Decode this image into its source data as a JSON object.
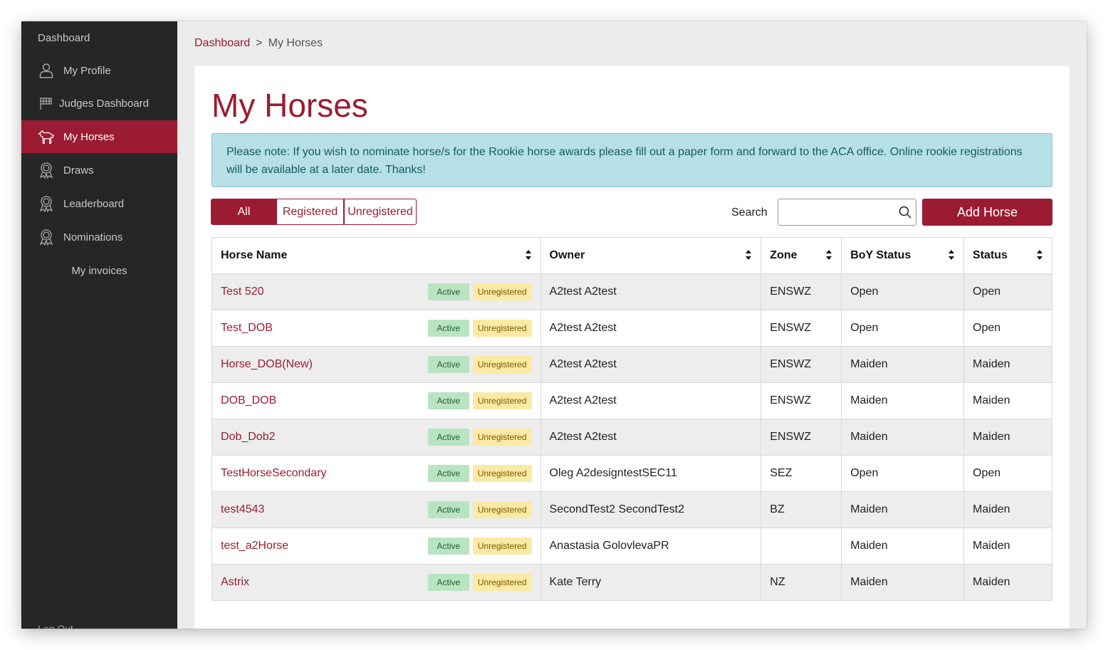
{
  "sidebar": {
    "top_label": "Dashboard",
    "items": [
      {
        "label": "My Profile",
        "icon": "user-icon"
      },
      {
        "label": "Judges Dashboard",
        "icon": "flag-icon"
      },
      {
        "label": "My Horses",
        "icon": "horse-icon",
        "active": true
      },
      {
        "label": "Draws",
        "icon": "award-icon"
      },
      {
        "label": "Leaderboard",
        "icon": "award-icon"
      },
      {
        "label": "Nominations",
        "icon": "award-icon"
      },
      {
        "label": "My invoices"
      }
    ],
    "bottom_label": "Log Out"
  },
  "breadcrumb": {
    "home": "Dashboard",
    "separator": ">",
    "current": "My Horses"
  },
  "page": {
    "title": "My Horses",
    "notice": "Please note: If you wish to nominate horse/s for the Rookie horse awards please fill out a paper form and forward to the ACA office. Online rookie registrations will be available at a later date. Thanks!"
  },
  "filters": {
    "all": "All",
    "registered": "Registered",
    "unregistered": "Unregistered",
    "selected": "All"
  },
  "search": {
    "label": "Search",
    "value": "",
    "placeholder": ""
  },
  "add_button": "Add Horse",
  "table": {
    "columns": [
      "Horse Name",
      "Owner",
      "Zone",
      "BoY Status",
      "Status"
    ],
    "rows": [
      {
        "name": "Test 520",
        "active": "Active",
        "reg": "Unregistered",
        "owner": "A2test A2test",
        "zone": "ENSWZ",
        "boy": "Open",
        "status": "Open"
      },
      {
        "name": "Test_DOB",
        "active": "Active",
        "reg": "Unregistered",
        "owner": "A2test A2test",
        "zone": "ENSWZ",
        "boy": "Open",
        "status": "Open"
      },
      {
        "name": "Horse_DOB(New)",
        "active": "Active",
        "reg": "Unregistered",
        "owner": "A2test A2test",
        "zone": "ENSWZ",
        "boy": "Maiden",
        "status": "Maiden"
      },
      {
        "name": "DOB_DOB",
        "active": "Active",
        "reg": "Unregistered",
        "owner": "A2test A2test",
        "zone": "ENSWZ",
        "boy": "Maiden",
        "status": "Maiden"
      },
      {
        "name": "Dob_Dob2",
        "active": "Active",
        "reg": "Unregistered",
        "owner": "A2test A2test",
        "zone": "ENSWZ",
        "boy": "Maiden",
        "status": "Maiden"
      },
      {
        "name": "TestHorseSecondary",
        "active": "Active",
        "reg": "Unregistered",
        "owner": "Oleg A2designtestSEC11",
        "zone": "SEZ",
        "boy": "Open",
        "status": "Open"
      },
      {
        "name": "test4543",
        "active": "Active",
        "reg": "Unregistered",
        "owner": "SecondTest2 SecondTest2",
        "zone": "BZ",
        "boy": "Maiden",
        "status": "Maiden"
      },
      {
        "name": "test_a2Horse",
        "active": "Active",
        "reg": "Unregistered",
        "owner": "Anastasia GolovlevaPR",
        "zone": "",
        "boy": "Maiden",
        "status": "Maiden"
      },
      {
        "name": "Astrix",
        "active": "Active",
        "reg": "Unregistered",
        "owner": "Kate Terry",
        "zone": "NZ",
        "boy": "Maiden",
        "status": "Maiden"
      }
    ]
  },
  "colors": {
    "brand": "#9b1c32",
    "sidebar": "#262626",
    "notice_bg": "#b6e0e6",
    "active_badge": "#b9e4c2",
    "unregistered_badge": "#fbeaa3"
  }
}
